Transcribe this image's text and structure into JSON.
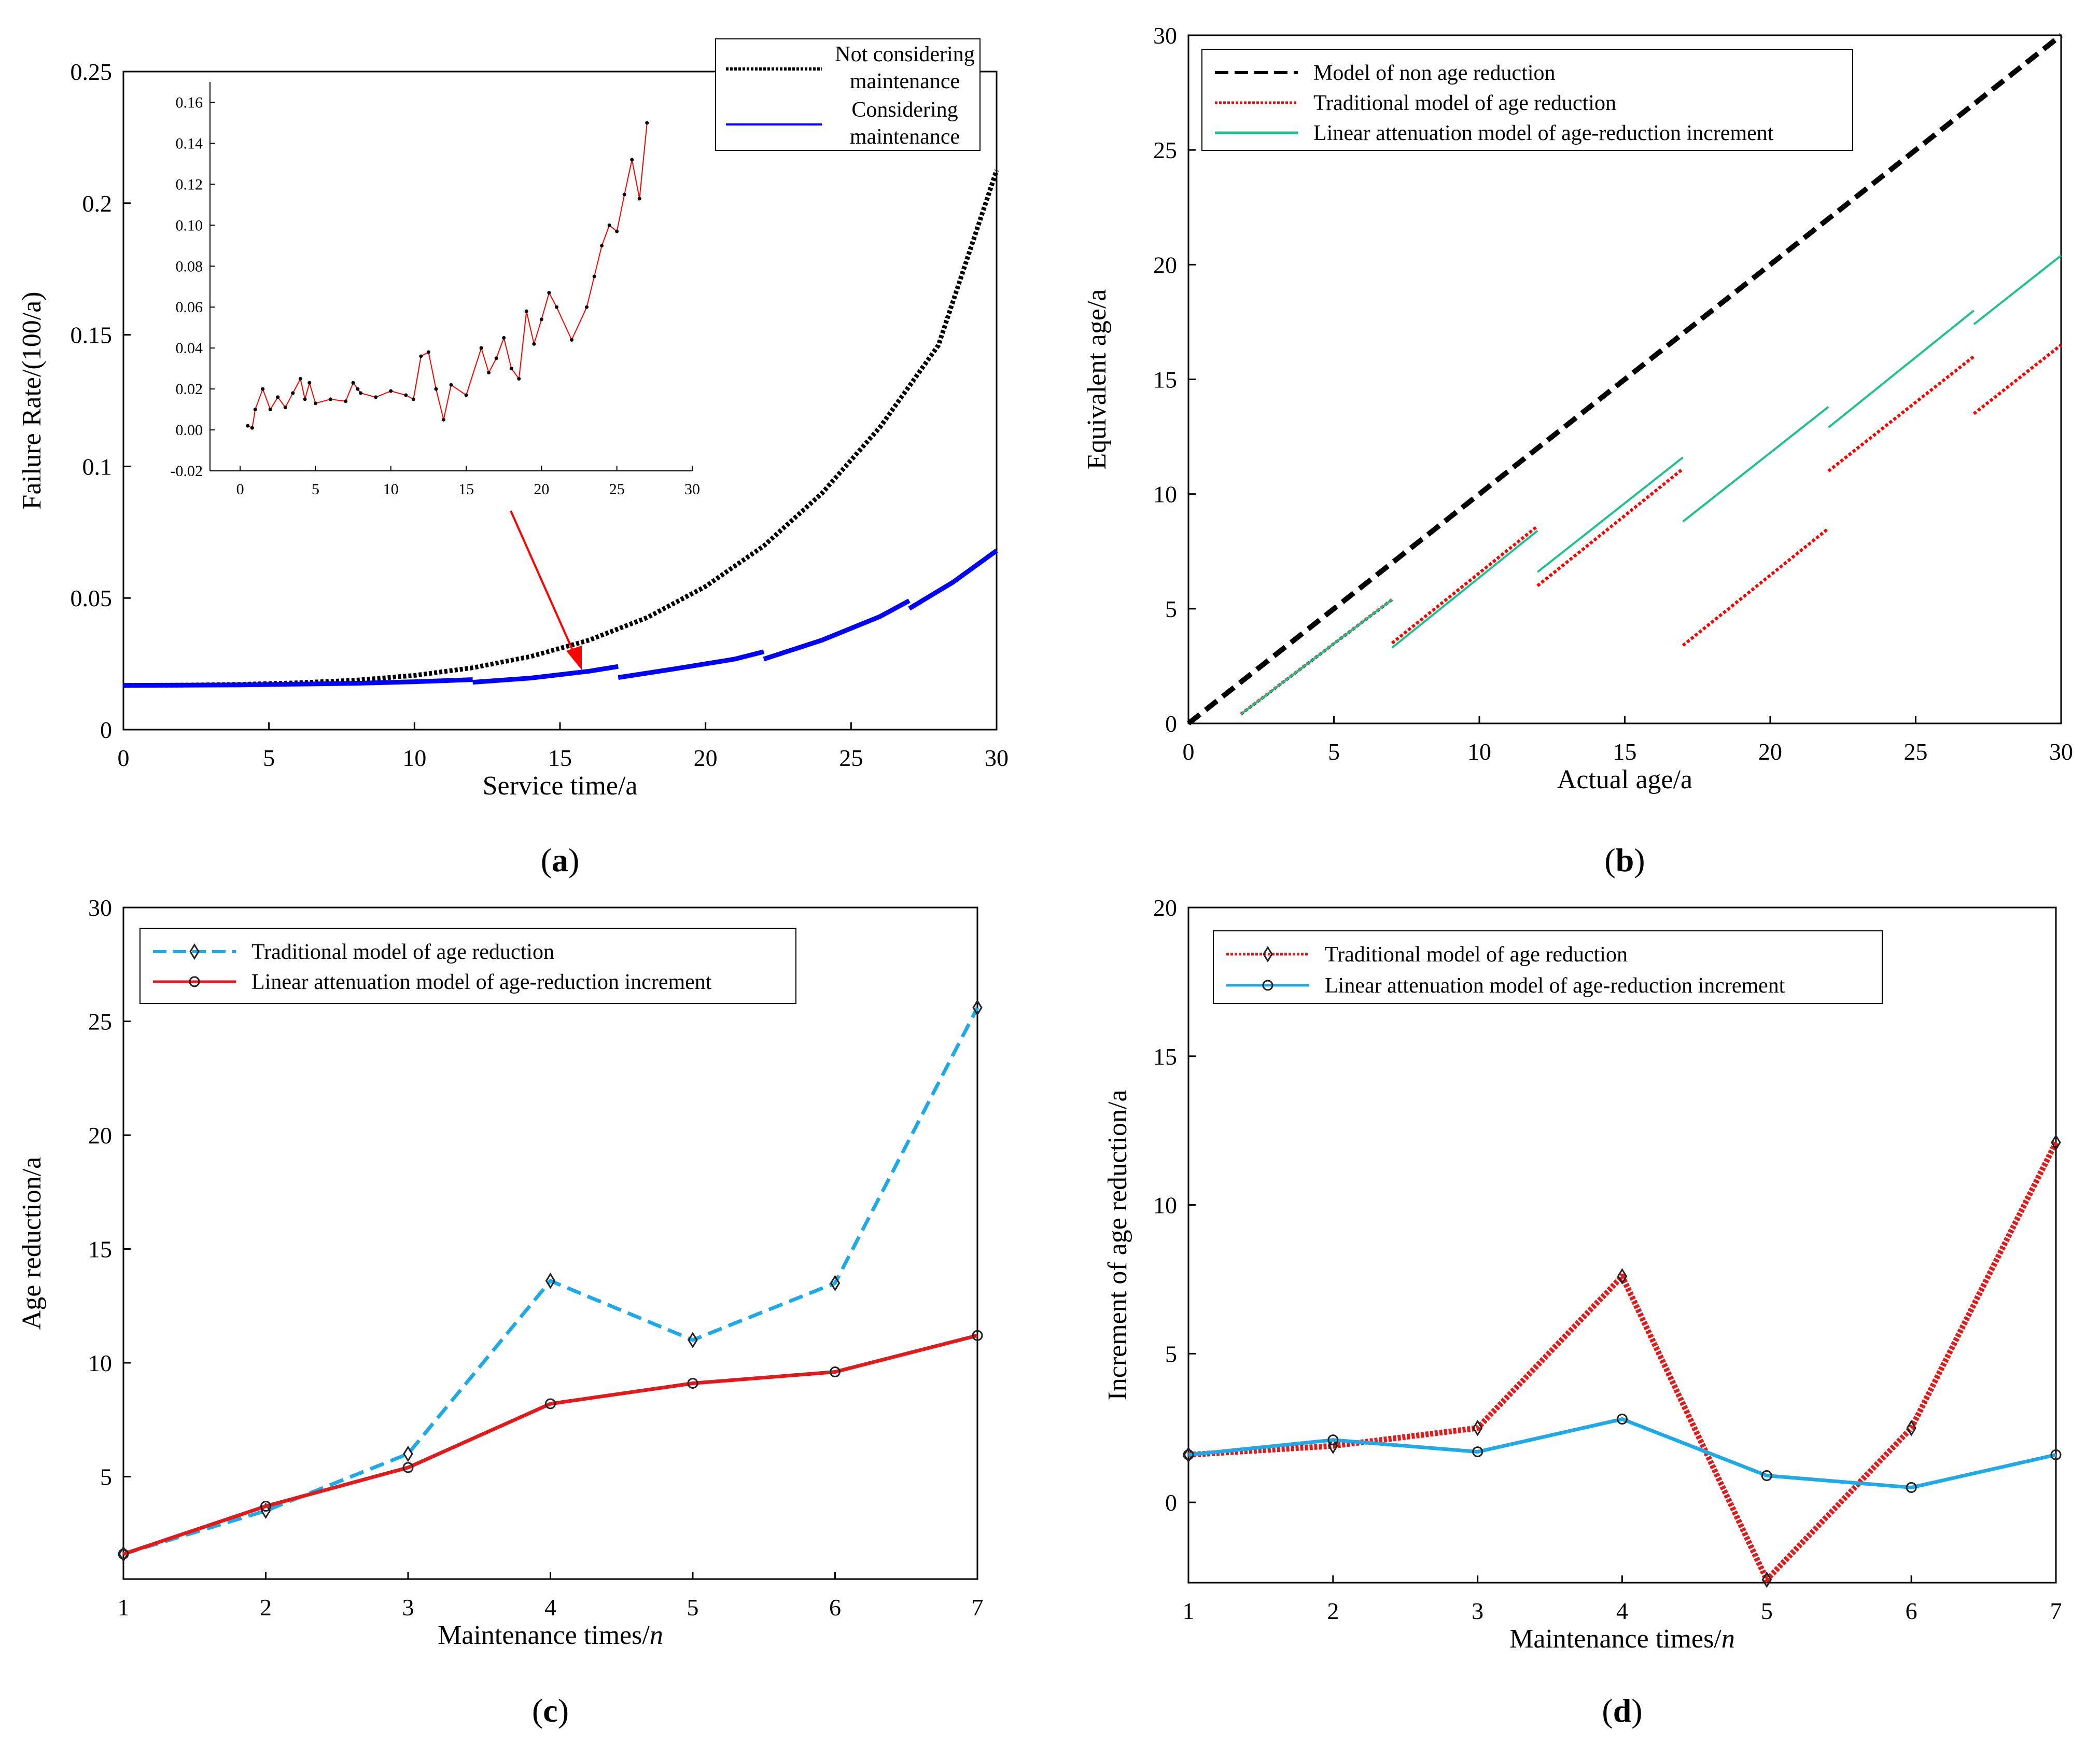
{
  "chart_data": [
    {
      "id": "a",
      "type": "line",
      "panel_label": "a",
      "xlabel": "Service time/a",
      "ylabel": "Failure Rate/(100/a)",
      "xlim": [
        0,
        30
      ],
      "ylim": [
        0,
        0.25
      ],
      "xticks": [
        "0",
        "5",
        "10",
        "15",
        "20",
        "25",
        "30"
      ],
      "yticks": [
        "0",
        "0.05",
        "0.1",
        "0.15",
        "0.2",
        "0.25"
      ],
      "legend_position": "top-right",
      "series": [
        {
          "name": "Not considering maintenance",
          "legend_lines": [
            "Not considering",
            "maintenance"
          ],
          "color": "#000000",
          "style": "dotted",
          "x": [
            0,
            2,
            4,
            6,
            8,
            10,
            12,
            14,
            16,
            18,
            20,
            22,
            24,
            26,
            28,
            30
          ],
          "y": [
            0.0168,
            0.0169,
            0.0172,
            0.0178,
            0.0188,
            0.0206,
            0.0235,
            0.0278,
            0.034,
            0.0426,
            0.0544,
            0.0698,
            0.0898,
            0.115,
            0.146,
            0.2125
          ]
        },
        {
          "name": "Considering maintenance",
          "legend_lines": [
            "Considering",
            "maintenance"
          ],
          "color": "#0000ff",
          "style": "solid",
          "segments": [
            {
              "x": [
                0,
                4,
                8,
                10,
                12
              ],
              "y": [
                0.0168,
                0.017,
                0.0176,
                0.0182,
                0.019
              ]
            },
            {
              "x": [
                12,
                14,
                16,
                17
              ],
              "y": [
                0.018,
                0.0196,
                0.0222,
                0.024
              ]
            },
            {
              "x": [
                17,
                19,
                21,
                22
              ],
              "y": [
                0.0198,
                0.0232,
                0.0268,
                0.0296
              ]
            },
            {
              "x": [
                22,
                24,
                26,
                27
              ],
              "y": [
                0.0268,
                0.034,
                0.043,
                0.049
              ]
            },
            {
              "x": [
                27,
                28.5,
                30
              ],
              "y": [
                0.046,
                0.056,
                0.068
              ]
            }
          ]
        }
      ],
      "inset": {
        "xlim": [
          -2,
          30
        ],
        "ylim": [
          -0.02,
          0.17
        ],
        "xticks": [
          "0",
          "5",
          "10",
          "15",
          "20",
          "25",
          "30"
        ],
        "yticks": [
          "-0.02",
          "0.00",
          "0.02",
          "0.04",
          "0.06",
          "0.08",
          "0.10",
          "0.12",
          "0.14",
          "0.16"
        ],
        "color": "#ff0000",
        "x": [
          0.5,
          0.8,
          1.0,
          1.5,
          2.0,
          2.5,
          3.0,
          3.5,
          4.0,
          4.3,
          4.6,
          5.0,
          6.0,
          7.0,
          7.5,
          7.8,
          8.0,
          9.0,
          10.0,
          11.0,
          11.5,
          12.0,
          12.5,
          13.0,
          13.5,
          14.0,
          15.0,
          16.0,
          16.5,
          17.0,
          17.5,
          18.0,
          18.5,
          19.0,
          19.5,
          20.0,
          20.5,
          21.0,
          22.0,
          23.0,
          23.5,
          24.0,
          24.5,
          25.0,
          25.5,
          26.0,
          26.5,
          27.0
        ],
        "y": [
          0.002,
          0.001,
          0.01,
          0.02,
          0.01,
          0.016,
          0.011,
          0.018,
          0.025,
          0.015,
          0.023,
          0.013,
          0.015,
          0.014,
          0.023,
          0.02,
          0.018,
          0.016,
          0.019,
          0.017,
          0.015,
          0.036,
          0.038,
          0.02,
          0.005,
          0.022,
          0.017,
          0.04,
          0.028,
          0.035,
          0.045,
          0.03,
          0.025,
          0.058,
          0.042,
          0.054,
          0.067,
          0.06,
          0.044,
          0.06,
          0.075,
          0.09,
          0.1,
          0.097,
          0.115,
          0.132,
          0.113,
          0.15
        ]
      }
    },
    {
      "id": "b",
      "type": "line",
      "panel_label": "b",
      "xlabel": "Actual age/a",
      "ylabel": "Equivalent age/a",
      "xlim": [
        0,
        30
      ],
      "ylim": [
        0,
        30
      ],
      "xticks": [
        "0",
        "5",
        "10",
        "15",
        "20",
        "25",
        "30"
      ],
      "yticks": [
        "0",
        "5",
        "10",
        "15",
        "20",
        "25",
        "30"
      ],
      "legend_position": "top-left",
      "series": [
        {
          "name": "Model of non age reduction",
          "color": "#000000",
          "style": "dashed",
          "segments": [
            {
              "x": [
                0,
                30
              ],
              "y": [
                0,
                30
              ]
            }
          ]
        },
        {
          "name": "Traditional model of age reduction",
          "color": "#ff0000",
          "style": "dotted",
          "segments": [
            {
              "x": [
                1.8,
                7
              ],
              "y": [
                0.4,
                5.4
              ]
            },
            {
              "x": [
                7,
                12
              ],
              "y": [
                3.5,
                8.6
              ]
            },
            {
              "x": [
                12,
                17
              ],
              "y": [
                6.0,
                11.1
              ]
            },
            {
              "x": [
                17,
                22
              ],
              "y": [
                3.4,
                8.5
              ]
            },
            {
              "x": [
                22,
                27
              ],
              "y": [
                11.0,
                16.0
              ]
            },
            {
              "x": [
                27,
                30
              ],
              "y": [
                13.5,
                16.5
              ]
            }
          ]
        },
        {
          "name": "Linear attenuation model of age-reduction increment",
          "color": "#1fbf8f",
          "style": "solid",
          "segments": [
            {
              "x": [
                1.8,
                7
              ],
              "y": [
                0.4,
                5.4
              ]
            },
            {
              "x": [
                7,
                12
              ],
              "y": [
                3.3,
                8.4
              ]
            },
            {
              "x": [
                12,
                17
              ],
              "y": [
                6.6,
                11.6
              ]
            },
            {
              "x": [
                17,
                22
              ],
              "y": [
                8.8,
                13.8
              ]
            },
            {
              "x": [
                22,
                27
              ],
              "y": [
                12.9,
                18.0
              ]
            },
            {
              "x": [
                27,
                30
              ],
              "y": [
                17.4,
                20.4
              ]
            }
          ]
        }
      ]
    },
    {
      "id": "c",
      "type": "line",
      "panel_label": "c",
      "xlabel": "Maintenance times/",
      "xlabel_italic": "n",
      "ylabel": "Age reduction/a",
      "xlim": [
        1,
        7
      ],
      "ylim": [
        0.5,
        30
      ],
      "yticks_values": [
        5,
        10,
        15,
        20,
        25,
        30
      ],
      "categories": [
        "1",
        "2",
        "3",
        "4",
        "5",
        "6",
        "7"
      ],
      "legend_position": "top-left",
      "series": [
        {
          "name": "Traditional model of age reduction",
          "color": "#1fa9e6",
          "style": "dashed",
          "marker": "diamond",
          "values": [
            1.6,
            3.5,
            6.0,
            13.6,
            11.0,
            13.5,
            25.6
          ]
        },
        {
          "name": "Linear attenuation model of age-reduction increment",
          "color": "#e31a1c",
          "style": "solid",
          "marker": "circle",
          "values": [
            1.6,
            3.7,
            5.4,
            8.2,
            9.1,
            9.6,
            11.2
          ]
        }
      ]
    },
    {
      "id": "d",
      "type": "line",
      "panel_label": "d",
      "xlabel": "Maintenance times/",
      "xlabel_italic": "n",
      "ylabel": "Increment of age reduction/a",
      "xlim": [
        1,
        7
      ],
      "ylim": [
        -2.7,
        20
      ],
      "yticks_values": [
        0,
        5,
        10,
        15,
        20
      ],
      "categories": [
        "1",
        "2",
        "3",
        "4",
        "5",
        "6",
        "7"
      ],
      "legend_position": "top-left",
      "series": [
        {
          "name": "Traditional model of age reduction",
          "color": "#e31a1c",
          "style": "dotted-thick",
          "marker": "diamond",
          "values": [
            1.6,
            1.9,
            2.5,
            7.6,
            -2.6,
            2.5,
            12.1
          ]
        },
        {
          "name": "Linear attenuation model of age-reduction increment",
          "color": "#1fa9e6",
          "style": "solid",
          "marker": "circle",
          "values": [
            1.6,
            2.1,
            1.7,
            2.8,
            0.9,
            0.5,
            1.6
          ]
        }
      ]
    }
  ]
}
